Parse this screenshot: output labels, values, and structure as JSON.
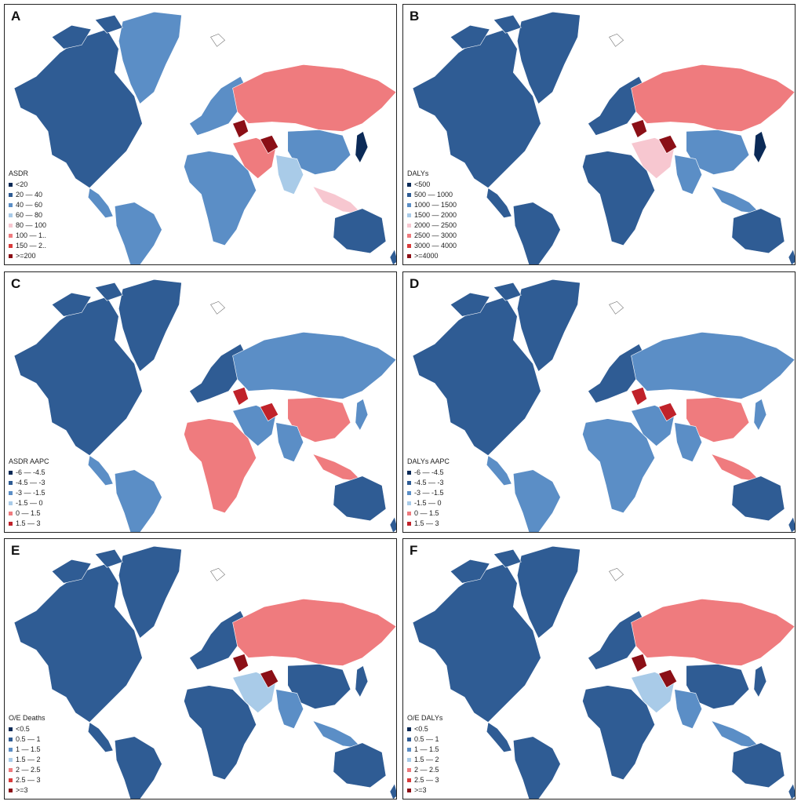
{
  "panels": [
    {
      "letter": "A",
      "legend_title": "ASDR",
      "legend": [
        {
          "label": "<20",
          "color": "#0b2a57"
        },
        {
          "label": "20 — 40",
          "color": "#2f5c94"
        },
        {
          "label": "40 — 60",
          "color": "#5b8ec6"
        },
        {
          "label": "60 — 80",
          "color": "#a9cbe8"
        },
        {
          "label": "80 — 100",
          "color": "#f7c7d0"
        },
        {
          "label": "100 — 1..",
          "color": "#ef7b7e"
        },
        {
          "label": "150 — 2..",
          "color": "#d93c3c"
        },
        {
          "label": ">=200",
          "color": "#8b0f16"
        }
      ],
      "colors": {
        "na": "#2f5c94",
        "gl": "#5b8ec6",
        "sa": "#5b8ec6",
        "ru": "#ef7b7e",
        "eu": "#5b8ec6",
        "af": "#5b8ec6",
        "me": "#ef7b7e",
        "cn": "#5b8ec6",
        "in": "#a9cbe8",
        "au": "#2f5c94",
        "jp": "#0b2a57",
        "hot": "#8b0f16",
        "sea": "#f7c7d0"
      }
    },
    {
      "letter": "B",
      "legend_title": "DALYs",
      "legend": [
        {
          "label": "<500",
          "color": "#0b2a57"
        },
        {
          "label": "500 — 1000",
          "color": "#2f5c94"
        },
        {
          "label": "1000 — 1500",
          "color": "#5b8ec6"
        },
        {
          "label": "1500 — 2000",
          "color": "#a9cbe8"
        },
        {
          "label": "2000 — 2500",
          "color": "#f7c7d0"
        },
        {
          "label": "2500 — 3000",
          "color": "#ef7b7e"
        },
        {
          "label": "3000 — 4000",
          "color": "#d93c3c"
        },
        {
          "label": ">=4000",
          "color": "#8b0f16"
        }
      ],
      "colors": {
        "na": "#2f5c94",
        "gl": "#2f5c94",
        "sa": "#2f5c94",
        "ru": "#ef7b7e",
        "eu": "#2f5c94",
        "af": "#2f5c94",
        "me": "#f7c7d0",
        "cn": "#5b8ec6",
        "in": "#5b8ec6",
        "au": "#2f5c94",
        "jp": "#0b2a57",
        "hot": "#8b0f16",
        "sea": "#5b8ec6"
      }
    },
    {
      "letter": "C",
      "legend_title": "ASDR AAPC",
      "legend": [
        {
          "label": "-6 — -4.5",
          "color": "#0b2a57"
        },
        {
          "label": "-4.5 — -3",
          "color": "#2f5c94"
        },
        {
          "label": "-3 — -1.5",
          "color": "#5b8ec6"
        },
        {
          "label": "-1.5 — 0",
          "color": "#a9cbe8"
        },
        {
          "label": "0 — 1.5",
          "color": "#ef7b7e"
        },
        {
          "label": "1.5 — 3",
          "color": "#c0222a"
        }
      ],
      "colors": {
        "na": "#2f5c94",
        "gl": "#2f5c94",
        "sa": "#5b8ec6",
        "ru": "#5b8ec6",
        "eu": "#2f5c94",
        "af": "#ef7b7e",
        "me": "#5b8ec6",
        "cn": "#ef7b7e",
        "in": "#5b8ec6",
        "au": "#2f5c94",
        "jp": "#5b8ec6",
        "hot": "#c0222a",
        "sea": "#ef7b7e"
      }
    },
    {
      "letter": "D",
      "legend_title": "DALYs AAPC",
      "legend": [
        {
          "label": "-6 — -4.5",
          "color": "#0b2a57"
        },
        {
          "label": "-4.5 — -3",
          "color": "#2f5c94"
        },
        {
          "label": "-3 — -1.5",
          "color": "#5b8ec6"
        },
        {
          "label": "-1.5 — 0",
          "color": "#a9cbe8"
        },
        {
          "label": "0 — 1.5",
          "color": "#ef7b7e"
        },
        {
          "label": "1.5 — 3",
          "color": "#c0222a"
        }
      ],
      "colors": {
        "na": "#2f5c94",
        "gl": "#2f5c94",
        "sa": "#5b8ec6",
        "ru": "#5b8ec6",
        "eu": "#2f5c94",
        "af": "#5b8ec6",
        "me": "#5b8ec6",
        "cn": "#ef7b7e",
        "in": "#5b8ec6",
        "au": "#2f5c94",
        "jp": "#5b8ec6",
        "hot": "#c0222a",
        "sea": "#ef7b7e"
      }
    },
    {
      "letter": "E",
      "legend_title": "O/E Deaths",
      "legend": [
        {
          "label": "<0.5",
          "color": "#0b2a57"
        },
        {
          "label": "0.5 — 1",
          "color": "#2f5c94"
        },
        {
          "label": "1 — 1.5",
          "color": "#5b8ec6"
        },
        {
          "label": "1.5 — 2",
          "color": "#a9cbe8"
        },
        {
          "label": "2 — 2.5",
          "color": "#ef7b7e"
        },
        {
          "label": "2.5 — 3",
          "color": "#d93c3c"
        },
        {
          "label": ">=3",
          "color": "#8b0f16"
        }
      ],
      "colors": {
        "na": "#2f5c94",
        "gl": "#2f5c94",
        "sa": "#2f5c94",
        "ru": "#ef7b7e",
        "eu": "#2f5c94",
        "af": "#2f5c94",
        "me": "#a9cbe8",
        "cn": "#2f5c94",
        "in": "#5b8ec6",
        "au": "#2f5c94",
        "jp": "#2f5c94",
        "hot": "#8b0f16",
        "sea": "#5b8ec6"
      }
    },
    {
      "letter": "F",
      "legend_title": "O/E DALYs",
      "legend": [
        {
          "label": "<0.5",
          "color": "#0b2a57"
        },
        {
          "label": "0.5 — 1",
          "color": "#2f5c94"
        },
        {
          "label": "1 — 1.5",
          "color": "#5b8ec6"
        },
        {
          "label": "1.5 — 2",
          "color": "#a9cbe8"
        },
        {
          "label": "2 — 2.5",
          "color": "#ef7b7e"
        },
        {
          "label": "2.5 — 3",
          "color": "#d93c3c"
        },
        {
          "label": ">=3",
          "color": "#8b0f16"
        }
      ],
      "colors": {
        "na": "#2f5c94",
        "gl": "#2f5c94",
        "sa": "#2f5c94",
        "ru": "#ef7b7e",
        "eu": "#2f5c94",
        "af": "#2f5c94",
        "me": "#a9cbe8",
        "cn": "#2f5c94",
        "in": "#5b8ec6",
        "au": "#2f5c94",
        "jp": "#2f5c94",
        "hot": "#8b0f16",
        "sea": "#5b8ec6"
      }
    }
  ]
}
